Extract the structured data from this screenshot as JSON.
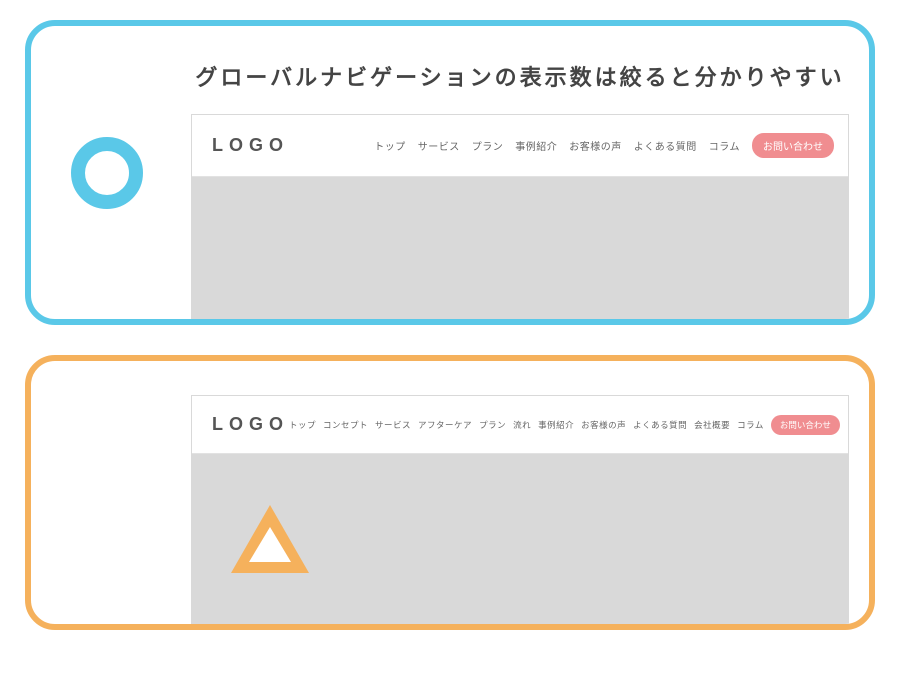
{
  "headline": "グローバルナビゲーションの表示数は絞ると分かりやすい",
  "colors": {
    "good_border": "#5ac8e8",
    "bad_border": "#f5b15c",
    "cta_bg": "#f08d90",
    "logo_text": "#555555"
  },
  "good": {
    "logo": "LOGO",
    "nav": [
      "トップ",
      "サービス",
      "プラン",
      "事例紹介",
      "お客様の声",
      "よくある質問",
      "コラム"
    ],
    "cta": "お問い合わせ"
  },
  "bad": {
    "logo": "LOGO",
    "nav": [
      "トップ",
      "コンセプト",
      "サービス",
      "アフターケア",
      "プラン",
      "流れ",
      "事例紹介",
      "お客様の声",
      "よくある質問",
      "会社概要",
      "コラム"
    ],
    "cta": "お問い合わせ"
  }
}
